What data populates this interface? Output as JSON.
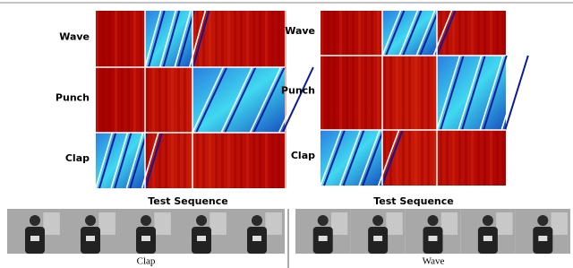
{
  "panels": [
    {
      "rows": [
        "Wave",
        "Punch",
        "Clap"
      ],
      "x_label": "Test Sequence",
      "caption": "Clap"
    },
    {
      "rows": [
        "Wave",
        "Punch",
        "Clap"
      ],
      "x_label": "Test Sequence",
      "caption": "Wave"
    }
  ]
}
